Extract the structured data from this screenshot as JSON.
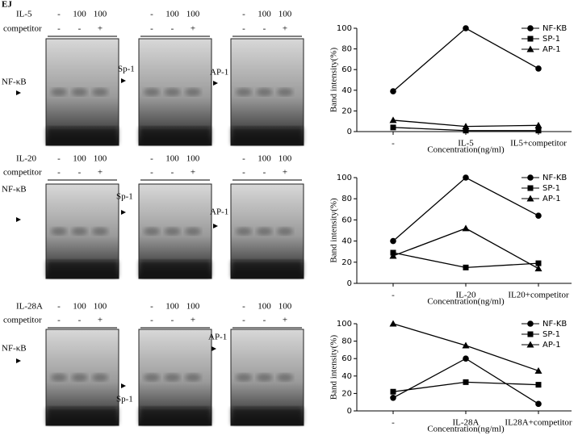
{
  "figure_label": "EJ",
  "gel_rows": [
    {
      "treatment": "IL-5",
      "competitor_label": "competitor",
      "doses": [
        "-",
        "100",
        "100"
      ],
      "competitor": [
        "-",
        "-",
        "+"
      ],
      "probes": [
        "NF-κB",
        "Sp-1",
        "AP-1"
      ]
    },
    {
      "treatment": "IL-20",
      "competitor_label": "competitor",
      "doses": [
        "-",
        "100",
        "100"
      ],
      "competitor": [
        "-",
        "-",
        "+"
      ],
      "probes": [
        "NF-κB",
        "Sp-1",
        "AP-1"
      ]
    },
    {
      "treatment": "IL-28A",
      "competitor_label": "competitor",
      "doses": [
        "-",
        "100",
        "100"
      ],
      "competitor": [
        "-",
        "-",
        "+"
      ],
      "probes": [
        "NF-κB",
        "Sp-1",
        "AP-1"
      ]
    }
  ],
  "chart_data": [
    {
      "type": "line",
      "x_label": "Concentration(ng/ml)",
      "y_label": "Band intensity(%)",
      "categories": [
        "-",
        "IL-5",
        "IL5+competitor"
      ],
      "ylim": [
        0,
        100
      ],
      "yticks": [
        0,
        20,
        40,
        60,
        80,
        100
      ],
      "legend": "upper right",
      "series": [
        {
          "name": "NF-KB",
          "color": "#000000",
          "marker": "circle",
          "values": [
            39,
            100,
            61
          ]
        },
        {
          "name": "SP-1",
          "color": "#000000",
          "marker": "square",
          "values": [
            4,
            1,
            1
          ]
        },
        {
          "name": "AP-1",
          "color": "#000000",
          "marker": "triangle",
          "values": [
            11,
            5,
            6
          ]
        }
      ]
    },
    {
      "type": "line",
      "x_label": "Concentration(ng/ml)",
      "y_label": "Band intensity(%)",
      "categories": [
        "-",
        "IL-20",
        "IL20+competitor"
      ],
      "ylim": [
        0,
        100
      ],
      "yticks": [
        0,
        20,
        40,
        60,
        80,
        100
      ],
      "legend": "upper right",
      "series": [
        {
          "name": "NF-KB",
          "color": "#000000",
          "marker": "circle",
          "values": [
            40,
            100,
            64
          ]
        },
        {
          "name": "SP-1",
          "color": "#000000",
          "marker": "square",
          "values": [
            29,
            15,
            19
          ]
        },
        {
          "name": "AP-1",
          "color": "#000000",
          "marker": "triangle",
          "values": [
            26,
            52,
            14
          ]
        }
      ]
    },
    {
      "type": "line",
      "x_label": "Concentration(ng/ml)",
      "y_label": "Band intensity(%)",
      "categories": [
        "-",
        "IL-28A",
        "IL28A+competitor"
      ],
      "ylim": [
        0,
        100
      ],
      "yticks": [
        0,
        20,
        40,
        60,
        80,
        100
      ],
      "legend": "upper right",
      "series": [
        {
          "name": "NF-KB",
          "color": "#000000",
          "marker": "circle",
          "values": [
            15,
            60,
            8
          ]
        },
        {
          "name": "SP-1",
          "color": "#000000",
          "marker": "square",
          "values": [
            22,
            33,
            30
          ]
        },
        {
          "name": "AP-1",
          "color": "#000000",
          "marker": "triangle",
          "values": [
            100,
            75,
            46
          ]
        }
      ]
    }
  ]
}
